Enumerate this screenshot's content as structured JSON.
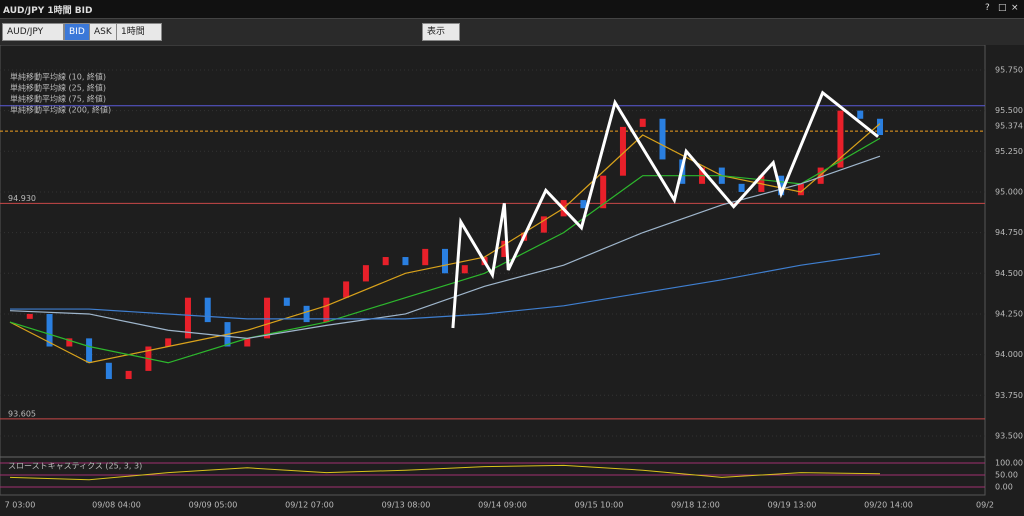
{
  "window": {
    "title": "AUD/JPY 1時間 BID",
    "buttons": [
      "?",
      "□",
      "×"
    ]
  },
  "toolbar": {
    "symbol": "AUD/JPY",
    "bid": "BID",
    "ask": "ASK",
    "period": "1時間",
    "view": "表示"
  },
  "chart_data": {
    "type": "candlestick",
    "legend": [
      "単純移動平均線 (10, 終値)",
      "単純移動平均線 (25, 終値)",
      "単純移動平均線 (75, 終値)",
      "単純移動平均線 (200, 終値)"
    ],
    "ylim": [
      93.383,
      95.885
    ],
    "yticks": [
      {
        "value": 95.75,
        "label": "95.750"
      },
      {
        "value": 95.5,
        "label": "95.500"
      },
      {
        "value": 95.25,
        "label": "95.250"
      },
      {
        "value": 95,
        "label": "95.000"
      },
      {
        "value": 94.75,
        "label": "94.750"
      },
      {
        "value": 94.5,
        "label": "94.500"
      },
      {
        "value": 94.25,
        "label": "94.250"
      },
      {
        "value": 94,
        "label": "94.000"
      },
      {
        "value": 93.75,
        "label": "93.750"
      },
      {
        "value": 93.5,
        "label": "93.500"
      }
    ],
    "xticks": [
      "7 03:00",
      "09/08 04:00",
      "09/09 05:00",
      "09/12 07:00",
      "09/13 08:00",
      "09/14 09:00",
      "09/15 10:00",
      "09/18 12:00",
      "09/19 13:00",
      "09/20 14:00",
      "09/2"
    ],
    "closes": [
      94.22,
      94.25,
      94.05,
      94.1,
      93.95,
      93.85,
      93.9,
      94.05,
      94.1,
      94.35,
      94.2,
      94.05,
      94.1,
      94.35,
      94.3,
      94.2,
      94.35,
      94.45,
      94.55,
      94.6,
      94.55,
      94.65,
      94.5,
      94.55,
      94.6,
      94.7,
      94.75,
      94.85,
      94.95,
      94.9,
      95.1,
      95.4,
      95.45,
      95.2,
      95.05,
      95.15,
      95.05,
      95.0,
      95.1,
      94.98,
      95.05,
      95.15,
      95.5,
      95.45,
      95.35
    ],
    "up_color": "#e8202a",
    "down_color": "#2a7fe0",
    "ma_x": [
      0,
      4,
      8,
      12,
      16,
      20,
      24,
      28,
      32,
      36,
      40,
      44
    ],
    "series": [
      {
        "name": "単純移動平均線 (10, 終値)",
        "color": "#d9a21b",
        "values": [
          94.2,
          93.95,
          94.05,
          94.15,
          94.3,
          94.5,
          94.6,
          94.9,
          95.35,
          95.1,
          95.0,
          95.42
        ]
      },
      {
        "name": "単純移動平均線 (25, 終値)",
        "color": "#2db82d",
        "values": [
          94.2,
          94.05,
          93.95,
          94.1,
          94.2,
          94.35,
          94.5,
          94.75,
          95.1,
          95.1,
          95.05,
          95.33
        ]
      },
      {
        "name": "単純移動平均線 (75, 終値)",
        "color": "#9fb6cc",
        "values": [
          94.27,
          94.25,
          94.15,
          94.1,
          94.18,
          94.25,
          94.42,
          94.55,
          94.75,
          94.92,
          95.05,
          95.22
        ]
      },
      {
        "name": "単純移動平均線 (200, 終値)",
        "color": "#3f7fd0",
        "values": [
          94.28,
          94.28,
          94.25,
          94.22,
          94.22,
          94.22,
          94.25,
          94.3,
          94.38,
          94.46,
          94.55,
          94.62
        ]
      }
    ],
    "zigzag": {
      "color": "#ffffff",
      "x": [
        22.4,
        22.8,
        24.4,
        25.0,
        25.2,
        27.1,
        28.9,
        30.6,
        33.6,
        34.2,
        36.6,
        38.6,
        39.0,
        41.1,
        43.9
      ],
      "values": [
        94.164,
        94.816,
        94.49,
        94.93,
        94.52,
        95.01,
        94.78,
        95.55,
        94.95,
        95.25,
        94.91,
        95.18,
        94.99,
        95.61,
        95.34
      ]
    },
    "hlines": [
      {
        "value": 95.53,
        "color": "#5a5ad8"
      },
      {
        "value": 95.374,
        "label": "95.374",
        "color": "#f0a020"
      },
      {
        "value": 94.93,
        "label": "94.930",
        "color": "#c84848"
      },
      {
        "value": 93.605,
        "label": "93.605",
        "color": "#c84848"
      }
    ],
    "stochastic": {
      "title": "スローストキャスティクス (25, 3, 3)",
      "ylim": [
        0,
        100
      ],
      "yticks": [
        {
          "value": 100,
          "label": "100.00"
        },
        {
          "value": 50,
          "label": "50.00"
        },
        {
          "value": 0,
          "label": "0.00"
        }
      ],
      "color": "#d9c21b",
      "values": [
        40,
        30,
        60,
        80,
        60,
        70,
        85,
        90,
        70,
        40,
        60,
        55
      ]
    }
  }
}
